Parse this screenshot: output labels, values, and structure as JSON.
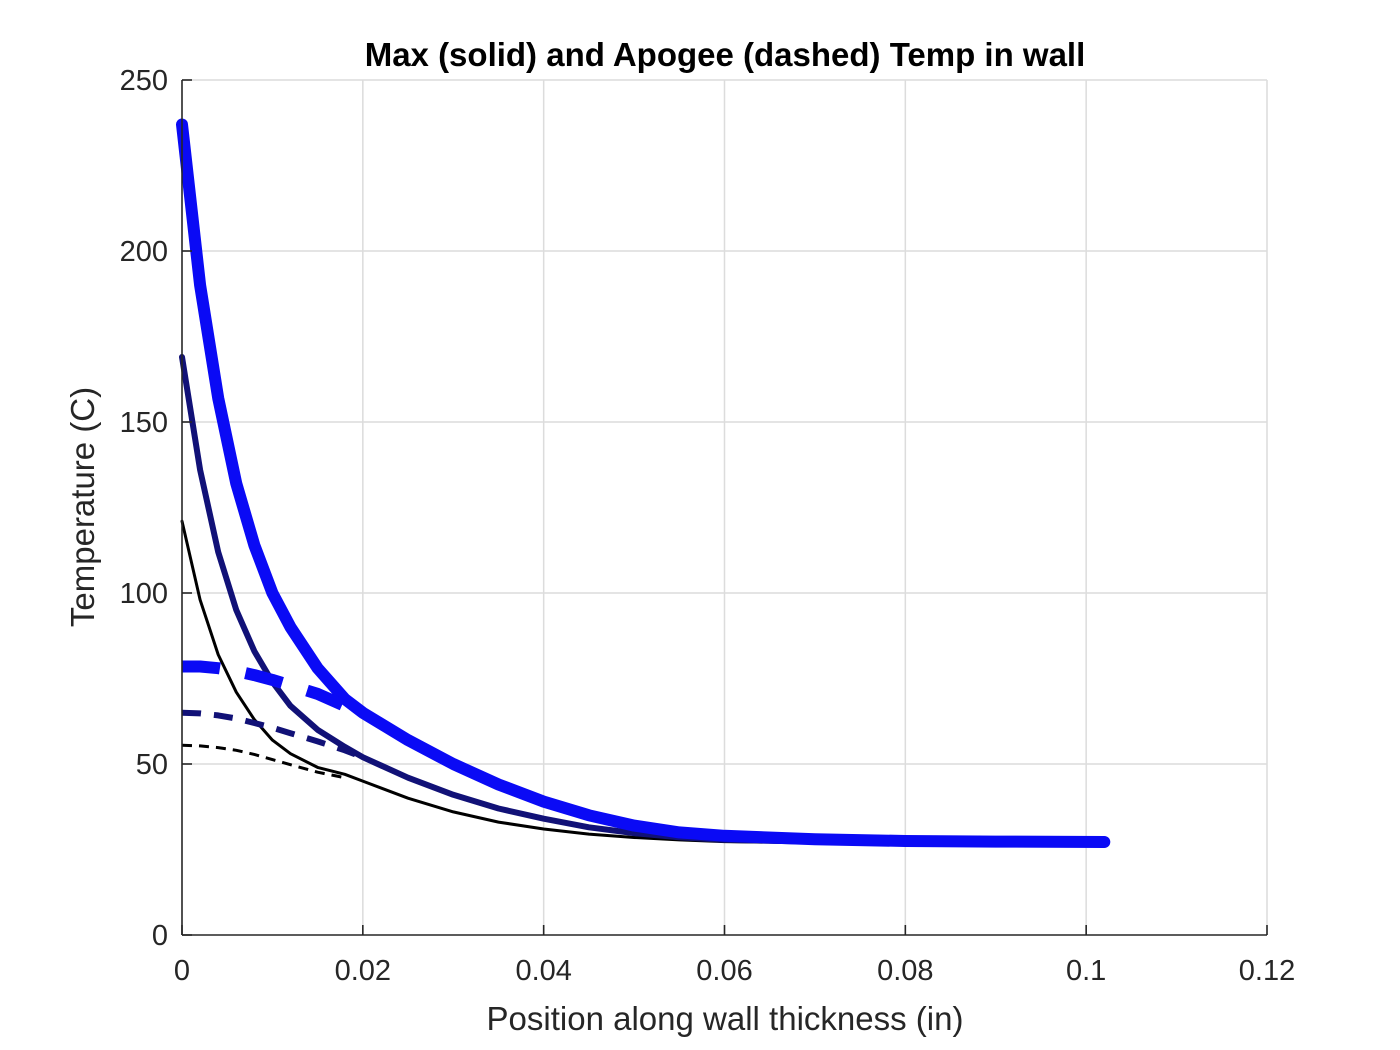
{
  "chart_data": {
    "type": "line",
    "title": "Max (solid) and Apogee (dashed) Temp in wall",
    "xlabel": "Position along wall thickness (in)",
    "ylabel": "Temperature (C)",
    "xlim": [
      0,
      0.12
    ],
    "ylim": [
      0,
      250
    ],
    "xticks": [
      0,
      0.02,
      0.04,
      0.06,
      0.08,
      0.1,
      0.12
    ],
    "xtick_labels": [
      "0",
      "0.02",
      "0.04",
      "0.06",
      "0.08",
      "0.1",
      "0.12"
    ],
    "yticks": [
      0,
      50,
      100,
      150,
      200,
      250
    ],
    "ytick_labels": [
      "0",
      "50",
      "100",
      "150",
      "200",
      "250"
    ],
    "grid": true,
    "legend": "none",
    "series": [
      {
        "style": "solid",
        "color": "#000000",
        "weight": "thin",
        "x": [
          0,
          0.002,
          0.004,
          0.006,
          0.008,
          0.01,
          0.012,
          0.015,
          0.018,
          0.02,
          0.025,
          0.03,
          0.035,
          0.04,
          0.045,
          0.05,
          0.055,
          0.06,
          0.07,
          0.08,
          0.09,
          0.102
        ],
        "y": [
          121,
          98,
          82,
          71,
          63,
          57,
          53,
          49,
          47,
          45,
          40,
          36,
          33,
          31,
          29.5,
          28.5,
          27.8,
          27.3,
          27,
          26.8,
          26.7,
          26.7
        ]
      },
      {
        "style": "solid",
        "color": "#111177",
        "weight": "medium",
        "x": [
          0,
          0.002,
          0.004,
          0.006,
          0.008,
          0.01,
          0.012,
          0.015,
          0.018,
          0.02,
          0.025,
          0.03,
          0.035,
          0.04,
          0.045,
          0.05,
          0.055,
          0.06,
          0.07,
          0.08,
          0.09,
          0.102
        ],
        "y": [
          169,
          136,
          112,
          95,
          83,
          74,
          67,
          60,
          55,
          52,
          46,
          41,
          37,
          34,
          31.5,
          29.8,
          28.6,
          27.8,
          27.3,
          27,
          26.9,
          26.9
        ]
      },
      {
        "style": "solid",
        "color": "#0a0af5",
        "weight": "thick",
        "x": [
          0,
          0.002,
          0.004,
          0.006,
          0.008,
          0.01,
          0.012,
          0.015,
          0.018,
          0.02,
          0.025,
          0.03,
          0.035,
          0.04,
          0.045,
          0.05,
          0.055,
          0.06,
          0.07,
          0.08,
          0.09,
          0.102
        ],
        "y": [
          237,
          190,
          157,
          132,
          114,
          100,
          90,
          78,
          69,
          65,
          57,
          50,
          44,
          39,
          35,
          32,
          30,
          29,
          28,
          27.5,
          27.3,
          27.2
        ]
      },
      {
        "style": "dashed",
        "color": "#000000",
        "weight": "thin",
        "x": [
          0,
          0.002,
          0.004,
          0.006,
          0.008,
          0.01,
          0.012,
          0.015,
          0.018
        ],
        "y": [
          55.5,
          55.3,
          54.8,
          54,
          52.8,
          51.3,
          49.8,
          47.6,
          46
        ]
      },
      {
        "style": "dashed",
        "color": "#111177",
        "weight": "medium",
        "x": [
          0,
          0.002,
          0.004,
          0.006,
          0.008,
          0.01,
          0.012,
          0.015,
          0.018,
          0.02
        ],
        "y": [
          65,
          64.8,
          64.2,
          63.3,
          62,
          60.6,
          59,
          56.6,
          54,
          52
        ]
      },
      {
        "style": "dashed",
        "color": "#0a0af5",
        "weight": "thick",
        "x": [
          0,
          0.002,
          0.004,
          0.006,
          0.008,
          0.01,
          0.012,
          0.015,
          0.018,
          0.02
        ],
        "y": [
          78.5,
          78.5,
          78,
          77.2,
          76,
          74.6,
          73,
          70.5,
          67,
          64.5
        ]
      }
    ]
  }
}
